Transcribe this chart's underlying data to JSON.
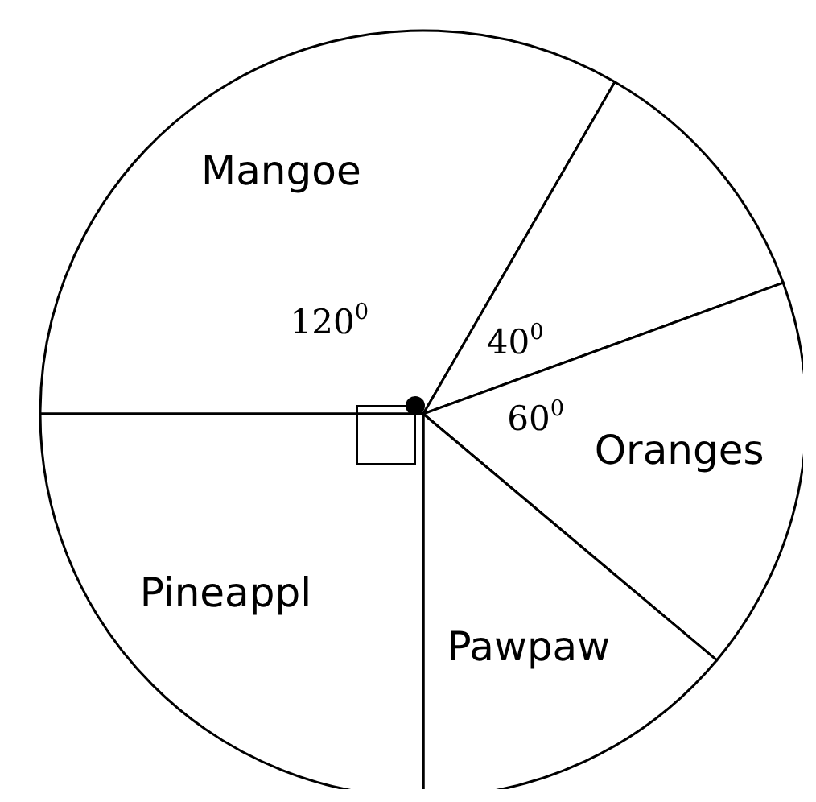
{
  "chart_data": {
    "type": "pie",
    "categories": [
      "Mangoe",
      null,
      "Oranges",
      "Pawpaw",
      "Pineappl"
    ],
    "values": [
      120,
      40,
      60,
      50,
      90
    ],
    "colors": [
      "#ffffff",
      "#ffffff",
      "#ffffff",
      "#ffffff",
      "#ffffff"
    ],
    "value_labels": [
      "120$^{0}$",
      "40$^{0}$",
      "60$^{0}$",
      null,
      null
    ],
    "legend": false
  }
}
